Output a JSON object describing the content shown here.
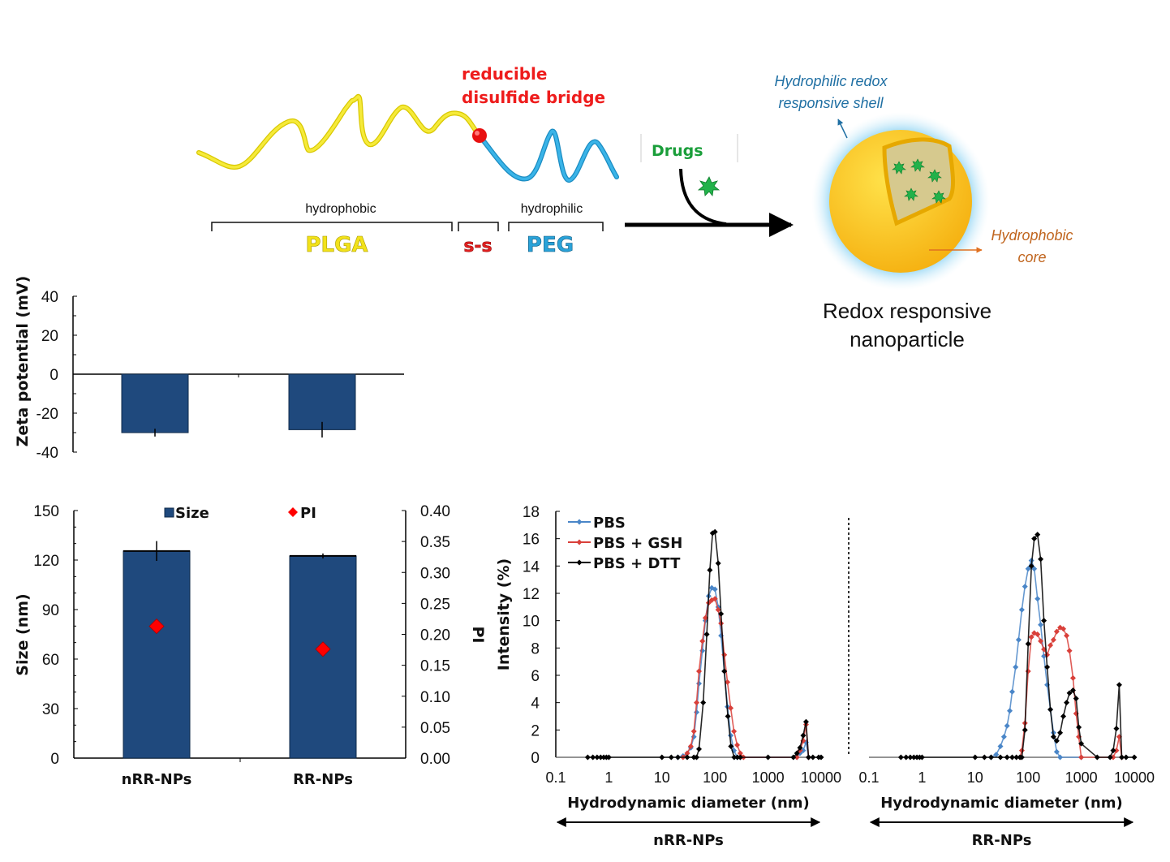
{
  "scheme": {
    "chain_title_line1": "reducible",
    "chain_title_line2": "disulfide bridge",
    "hydrophobic_label": "hydrophobic",
    "hydrophilic_label": "hydrophilic",
    "segment_plga": "PLGA",
    "segment_ss": "s-s",
    "segment_peg": "PEG",
    "drugs_label": "Drugs",
    "shell_label_line1": "Hydrophilic redox",
    "shell_label_line2": "responsive shell",
    "core_label_line1": "Hydrophobic",
    "core_label_line2": "core",
    "np_title_line1": "Redox responsive",
    "np_title_line2": "nanoparticle",
    "colors": {
      "plga": "#f2e21a",
      "peg": "#2aa2d8",
      "disulfide": "#e81010",
      "drug": "#22b24a",
      "shell_label": "#1f6fa3",
      "core_label": "#c0651e",
      "core": "#f7bd1a"
    }
  },
  "chart_data": [
    {
      "id": "zeta",
      "type": "bar",
      "title": "",
      "xlabel": "",
      "ylabel": "Zeta potential (mV)",
      "categories": [
        "nRR-NPs",
        "RR-NPs"
      ],
      "values": [
        -30,
        -28.5
      ],
      "errors": [
        2,
        4
      ],
      "ylim": [
        -40,
        40
      ],
      "yticks": [
        "40",
        "20",
        "0",
        "-20",
        "-40"
      ],
      "color": "#1f497d"
    },
    {
      "id": "size_pi",
      "type": "bar",
      "title": "",
      "xlabel": "",
      "ylabel": "Size (nm)",
      "ylabel_right": "PI",
      "categories": [
        "nRR-NPs",
        "RR-NPs"
      ],
      "series": [
        {
          "name": "Size",
          "type": "bar",
          "values": [
            125.5,
            122.5
          ],
          "errors": [
            6,
            1.5
          ],
          "axis": "left",
          "color": "#1f497d"
        },
        {
          "name": "PI",
          "type": "scatter",
          "values": [
            0.213,
            0.176
          ],
          "axis": "right",
          "color": "#ff0000"
        }
      ],
      "ylim": [
        0,
        150
      ],
      "ylim_right": [
        0,
        0.4
      ],
      "yticks": [
        "150",
        "120",
        "90",
        "60",
        "30",
        "0"
      ],
      "yticks_right": [
        "0.40",
        "0.35",
        "0.30",
        "0.25",
        "0.20",
        "0.15",
        "0.10",
        "0.05",
        "0.00"
      ],
      "legend": "top"
    },
    {
      "id": "dls_nrr",
      "type": "line",
      "xscale": "log",
      "xlabel": "Hydrodynamic diameter (nm)",
      "ylabel": "Intensity (%)",
      "group_label": "nRR-NPs",
      "xlim": [
        0.1,
        10000
      ],
      "ylim": [
        0,
        18
      ],
      "xticks": [
        "0.1",
        "1",
        "10",
        "100",
        "1000",
        "10000"
      ],
      "yticks": [
        "18",
        "16",
        "14",
        "12",
        "10",
        "8",
        "6",
        "4",
        "2",
        "0"
      ],
      "legend": "top-left",
      "series": [
        {
          "name": "PBS",
          "color": "#4a86c8",
          "x": [
            20,
            25,
            30,
            35,
            40,
            45,
            50,
            58,
            66,
            76,
            87,
            100,
            115,
            130,
            150,
            172,
            198,
            228,
            262,
            300,
            3500,
            4000,
            4600,
            5200,
            5800
          ],
          "y": [
            0,
            0.1,
            0.3,
            0.7,
            1.5,
            3.3,
            5.4,
            7.8,
            10,
            11.8,
            12.4,
            12.3,
            11,
            8.9,
            6.3,
            3.7,
            1.6,
            0.5,
            0,
            0,
            0,
            0.3,
            0.5,
            1.1,
            0
          ]
        },
        {
          "name": "PBS + GSH",
          "color": "#d9403a",
          "x": [
            25,
            30,
            35,
            40,
            45,
            50,
            58,
            66,
            76,
            87,
            100,
            115,
            130,
            150,
            172,
            198,
            228,
            262,
            300,
            345,
            3500,
            4000,
            4600,
            5200,
            5800
          ],
          "y": [
            0,
            0.3,
            0.8,
            1.9,
            4,
            6.3,
            8.5,
            10.2,
            11.3,
            11.5,
            11.6,
            10.8,
            9.8,
            7.5,
            5.5,
            3.6,
            1.9,
            0.9,
            0.3,
            0,
            0,
            0.5,
            1.2,
            2.4,
            0
          ]
        },
        {
          "name": "PBS + DTT",
          "color": "#000000",
          "x": [
            0.4,
            0.5,
            0.6,
            0.7,
            0.8,
            0.9,
            1,
            10,
            15,
            20,
            30,
            40,
            45,
            50,
            60,
            70,
            80,
            90,
            100,
            115,
            130,
            150,
            175,
            200,
            230,
            265,
            300,
            1000,
            3000,
            3500,
            4000,
            4600,
            5200,
            5800,
            7000,
            9000,
            10000
          ],
          "y": [
            0,
            0,
            0,
            0,
            0,
            0,
            0,
            0,
            0,
            0,
            0,
            0,
            0,
            0.6,
            4,
            9,
            13.7,
            16.4,
            16.5,
            14.2,
            10.5,
            6.3,
            3,
            0.8,
            0,
            0,
            0,
            0,
            0,
            0.3,
            0.7,
            1.6,
            2.6,
            0,
            0,
            0,
            0
          ]
        }
      ]
    },
    {
      "id": "dls_rr",
      "type": "line",
      "xscale": "log",
      "xlabel": "Hydrodynamic diameter (nm)",
      "ylabel": "Intensity (%)",
      "group_label": "RR-NPs",
      "xlim": [
        0.1,
        10000
      ],
      "ylim": [
        0,
        18
      ],
      "xticks": [
        "0.1",
        "1",
        "10",
        "100",
        "1000",
        "10000"
      ],
      "series": [
        {
          "name": "PBS",
          "color": "#4a86c8",
          "x": [
            20,
            25,
            30,
            35,
            40,
            45,
            50,
            58,
            66,
            76,
            87,
            100,
            115,
            130,
            150,
            172,
            198,
            228,
            262,
            300,
            345,
            400,
            1000
          ],
          "y": [
            0,
            0.2,
            0.8,
            1.5,
            2.3,
            3.4,
            4.8,
            6.6,
            8.6,
            10.8,
            12.5,
            13.8,
            14.4,
            13.8,
            11.6,
            9.7,
            7.4,
            5.3,
            3.5,
            1.8,
            0.4,
            0,
            0
          ]
        },
        {
          "name": "PBS + GSH",
          "color": "#d9403a",
          "x": [
            70,
            76,
            87,
            100,
            115,
            130,
            150,
            172,
            198,
            228,
            262,
            300,
            345,
            400,
            460,
            530,
            600,
            700,
            800,
            900,
            1000,
            4000,
            4600,
            5200,
            5800
          ],
          "y": [
            0,
            0.5,
            2.5,
            6.3,
            8.8,
            9.1,
            9.0,
            8.5,
            7.9,
            7.5,
            8.2,
            8.6,
            9.2,
            9.5,
            9.4,
            8.9,
            7.8,
            5.8,
            3.2,
            1.5,
            0,
            0,
            0.5,
            1.5,
            0
          ]
        },
        {
          "name": "PBS + DTT",
          "color": "#000000",
          "x": [
            0.4,
            0.5,
            0.6,
            0.7,
            0.8,
            0.9,
            1,
            10,
            15,
            20,
            30,
            40,
            50,
            60,
            70,
            76,
            87,
            100,
            115,
            130,
            150,
            172,
            198,
            228,
            262,
            300,
            345,
            400,
            460,
            530,
            600,
            700,
            800,
            900,
            1000,
            2000,
            3500,
            4000,
            4600,
            5200,
            5800,
            7000,
            10000
          ],
          "y": [
            0,
            0,
            0,
            0,
            0,
            0,
            0,
            0,
            0,
            0,
            0,
            0,
            0,
            0,
            0,
            0,
            2,
            8.3,
            14,
            16,
            16.3,
            14.5,
            10,
            6.6,
            3.5,
            1.5,
            1.2,
            1.8,
            3,
            4,
            4.7,
            4.9,
            4.3,
            2.2,
            1,
            0,
            0,
            0.5,
            2.1,
            5.3,
            0,
            0,
            0
          ]
        }
      ]
    }
  ]
}
